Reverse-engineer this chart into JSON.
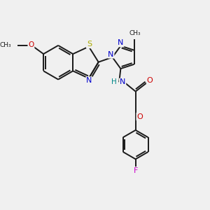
{
  "bg_color": "#f0f0f0",
  "bond_color": "#1a1a1a",
  "bond_width": 1.4,
  "atom_colors": {
    "N": "#0000cc",
    "O": "#cc0000",
    "S": "#aaaa00",
    "F": "#cc00cc",
    "H": "#008888"
  },
  "figsize": [
    3.0,
    3.0
  ],
  "dpi": 100
}
